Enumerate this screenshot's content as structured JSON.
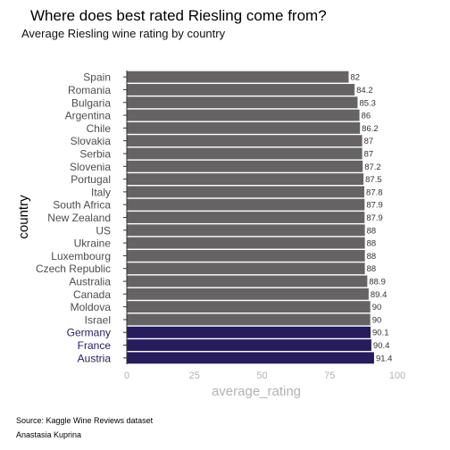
{
  "chart_data": {
    "type": "bar",
    "orientation": "horizontal",
    "title": "Where does best rated Riesling come from?",
    "subtitle": "Average Riesling wine rating by country",
    "xlabel": "average_rating",
    "ylabel": "country",
    "xlim": [
      0,
      100
    ],
    "xticks": [
      0,
      25,
      50,
      75,
      100
    ],
    "grid": false,
    "categories": [
      "Spain",
      "Romania",
      "Bulgaria",
      "Argentina",
      "Chile",
      "Slovakia",
      "Serbia",
      "Slovenia",
      "Portugal",
      "Italy",
      "South Africa",
      "New Zealand",
      "US",
      "Ukraine",
      "Luxembourg",
      "Czech Republic",
      "Australia",
      "Canada",
      "Moldova",
      "Israel",
      "Germany",
      "France",
      "Austria"
    ],
    "values": [
      82,
      84.2,
      85.3,
      86,
      86.2,
      87,
      87,
      87.2,
      87.5,
      87.8,
      87.9,
      87.9,
      88,
      88,
      88,
      88,
      88.9,
      89.4,
      90,
      90,
      90.1,
      90.4,
      91.4
    ],
    "highlight": [
      "Germany",
      "France",
      "Austria"
    ],
    "colors": {
      "default": "#656363",
      "highlight": "#261c5e",
      "axis_text": "#4d4d4d",
      "axis_title": "#b3b3b3"
    }
  },
  "caption": {
    "source": "Source: Kaggle Wine Reviews dataset",
    "author": "Anastasia Kuprina"
  }
}
